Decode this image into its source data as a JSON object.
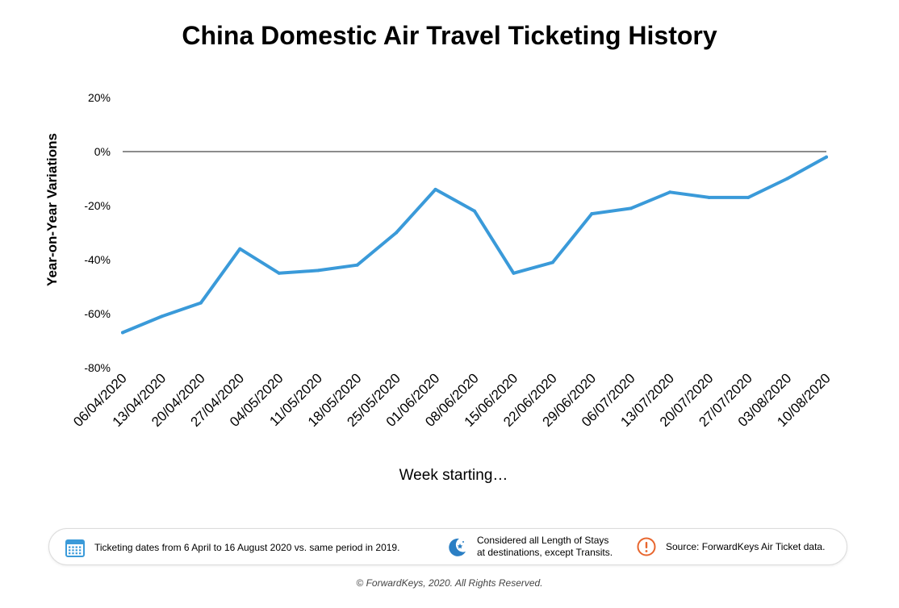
{
  "title": "China Domestic Air Travel Ticketing History",
  "chart_data": {
    "type": "line",
    "title": "China Domestic Air Travel Ticketing History",
    "xlabel": "Week starting…",
    "ylabel": "Year-on-Year Variations",
    "x": [
      "06/04/2020",
      "13/04/2020",
      "20/04/2020",
      "27/04/2020",
      "04/05/2020",
      "11/05/2020",
      "18/05/2020",
      "25/05/2020",
      "01/06/2020",
      "08/06/2020",
      "15/06/2020",
      "22/06/2020",
      "29/06/2020",
      "06/07/2020",
      "13/07/2020",
      "20/07/2020",
      "27/07/2020",
      "03/08/2020",
      "10/08/2020"
    ],
    "series": [
      {
        "values": [
          -67,
          -61,
          -56,
          -36,
          -45,
          -44,
          -42,
          -30,
          -14,
          -22,
          -45,
          -41,
          -23,
          -21,
          -15,
          -17,
          -17,
          -10,
          -2
        ]
      }
    ],
    "ylim": [
      -80,
      20
    ],
    "yticks": [
      20,
      0,
      -20,
      -40,
      -60,
      -80
    ],
    "ytick_labels": [
      "20%",
      "0%",
      "-20%",
      "-40%",
      "-60%",
      "-80%"
    ],
    "reference_line": 0,
    "grid": false,
    "line_color": "#3a9ad9",
    "zero_line_color": "#8c8c8c"
  },
  "footer": {
    "note1": "Ticketing dates from 6 April to 16 August 2020 vs. same period in 2019.",
    "note2_line1": "Considered all Length of Stays",
    "note2_line2": "at destinations, except Transits.",
    "note3": "Source: ForwardKeys Air Ticket data.",
    "calendar_icon_color": "#3a9ad9",
    "moon_icon_color": "#2b7fc4",
    "alert_icon_color": "#e8662e"
  },
  "copyright": "© ForwardKeys, 2020. All Rights Reserved."
}
